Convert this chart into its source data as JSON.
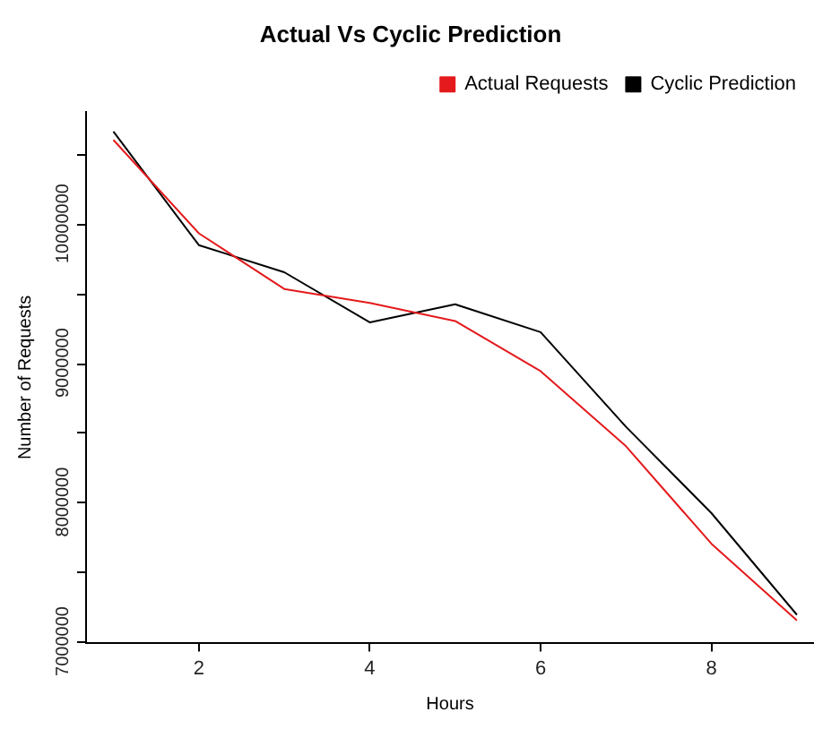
{
  "chart_data": {
    "type": "line",
    "title": "Actual Vs Cyclic Prediction",
    "xlabel": "Hours",
    "ylabel": "Number of Requests",
    "x": [
      1,
      2,
      3,
      4,
      5,
      6,
      7,
      8,
      9
    ],
    "series": [
      {
        "name": "Actual Requests",
        "color": "#e41a1c",
        "values": [
          10600000,
          9930000,
          9530000,
          9430000,
          9300000,
          8940000,
          8400000,
          7700000,
          7150000
        ]
      },
      {
        "name": "Cyclic Prediction",
        "color": "#000000",
        "values": [
          10660000,
          9845000,
          9650000,
          9290000,
          9420000,
          9220000,
          8540000,
          7920000,
          7190000
        ]
      }
    ],
    "xlim": [
      0.68,
      9.2
    ],
    "xticks": [
      2,
      4,
      6,
      8
    ],
    "ylim": [
      6990000,
      10800000
    ],
    "yticks": [
      7000000,
      {
        "value": 7500000,
        "label": null
      },
      8000000,
      {
        "value": 8500000,
        "label": null
      },
      9000000,
      {
        "value": 9500000,
        "label": null
      },
      10000000,
      {
        "value": 10500000,
        "label": null
      }
    ],
    "grid": false,
    "legend": "top right",
    "marker": "none",
    "line_style": "solid"
  }
}
